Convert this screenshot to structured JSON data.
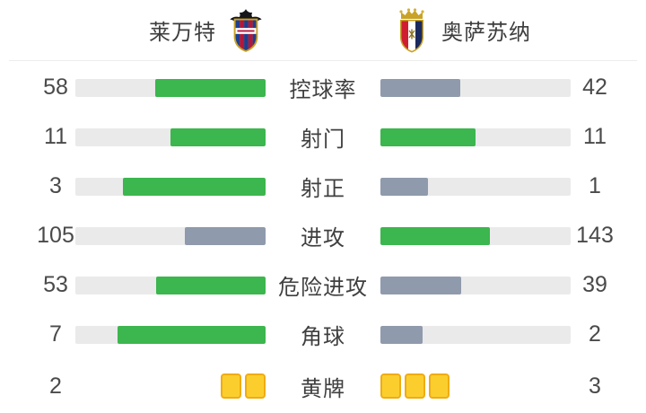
{
  "teams": {
    "home": {
      "name": "莱万特",
      "badge": "levante-crest"
    },
    "away": {
      "name": "奥萨苏纳",
      "badge": "osasuna-crest"
    }
  },
  "colors": {
    "leading": "#3cb64e",
    "trailing": "#8f9aac",
    "track": "#eaeaeb",
    "card_fill": "#fbce2e",
    "card_border": "#f0ac12"
  },
  "chart_data": {
    "type": "bar",
    "subtype": "paired-horizontal-comparison",
    "title": "",
    "teams": [
      "莱万特",
      "奥萨苏纳"
    ],
    "legend_position": "header",
    "grid": false,
    "rows": [
      {
        "label": "控球率",
        "home": 58,
        "away": 42
      },
      {
        "label": "射门",
        "home": 11,
        "away": 11
      },
      {
        "label": "射正",
        "home": 3,
        "away": 1
      },
      {
        "label": "进攻",
        "home": 105,
        "away": 143
      },
      {
        "label": "危险进攻",
        "home": 53,
        "away": 39
      },
      {
        "label": "角球",
        "home": 7,
        "away": 2
      }
    ],
    "cards": {
      "label": "黄牌",
      "home": 2,
      "away": 3
    },
    "layout_hint": "bar fill = value/(home+away); leading side green, trailing side slate-gray, ties both green; home bar grows right-to-left, away bar grows left-to-right; yellow cards drawn as card icons"
  }
}
